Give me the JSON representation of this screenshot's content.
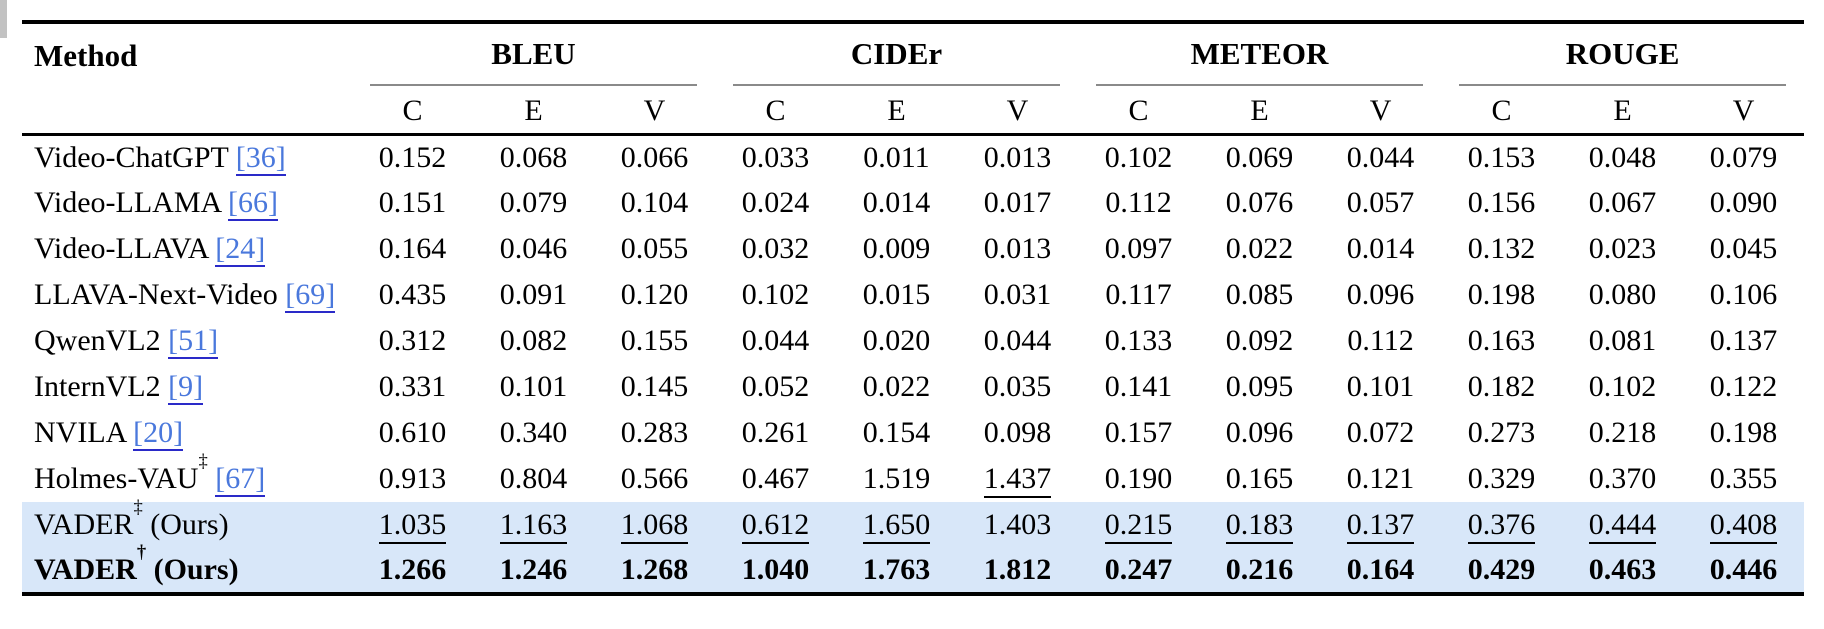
{
  "table": {
    "method_header": "Method",
    "groups": [
      {
        "label": "BLEU"
      },
      {
        "label": "CIDEr"
      },
      {
        "label": "METEOR"
      },
      {
        "label": "ROUGE"
      }
    ],
    "subcolumns": [
      "C",
      "E",
      "V"
    ],
    "rows": [
      {
        "method": "Video-ChatGPT",
        "sup": "",
        "suffix": "",
        "ref": "36",
        "bold": false,
        "highlight": false,
        "values": [
          "0.152",
          "0.068",
          "0.066",
          "0.033",
          "0.011",
          "0.013",
          "0.102",
          "0.069",
          "0.044",
          "0.153",
          "0.048",
          "0.079"
        ],
        "underline": [
          false,
          false,
          false,
          false,
          false,
          false,
          false,
          false,
          false,
          false,
          false,
          false
        ]
      },
      {
        "method": "Video-LLAMA",
        "sup": "",
        "suffix": "",
        "ref": "66",
        "bold": false,
        "highlight": false,
        "values": [
          "0.151",
          "0.079",
          "0.104",
          "0.024",
          "0.014",
          "0.017",
          "0.112",
          "0.076",
          "0.057",
          "0.156",
          "0.067",
          "0.090"
        ],
        "underline": [
          false,
          false,
          false,
          false,
          false,
          false,
          false,
          false,
          false,
          false,
          false,
          false
        ]
      },
      {
        "method": "Video-LLAVA",
        "sup": "",
        "suffix": "",
        "ref": "24",
        "bold": false,
        "highlight": false,
        "values": [
          "0.164",
          "0.046",
          "0.055",
          "0.032",
          "0.009",
          "0.013",
          "0.097",
          "0.022",
          "0.014",
          "0.132",
          "0.023",
          "0.045"
        ],
        "underline": [
          false,
          false,
          false,
          false,
          false,
          false,
          false,
          false,
          false,
          false,
          false,
          false
        ]
      },
      {
        "method": "LLAVA-Next-Video",
        "sup": "",
        "suffix": "",
        "ref": "69",
        "bold": false,
        "highlight": false,
        "values": [
          "0.435",
          "0.091",
          "0.120",
          "0.102",
          "0.015",
          "0.031",
          "0.117",
          "0.085",
          "0.096",
          "0.198",
          "0.080",
          "0.106"
        ],
        "underline": [
          false,
          false,
          false,
          false,
          false,
          false,
          false,
          false,
          false,
          false,
          false,
          false
        ]
      },
      {
        "method": "QwenVL2",
        "sup": "",
        "suffix": "",
        "ref": "51",
        "bold": false,
        "highlight": false,
        "values": [
          "0.312",
          "0.082",
          "0.155",
          "0.044",
          "0.020",
          "0.044",
          "0.133",
          "0.092",
          "0.112",
          "0.163",
          "0.081",
          "0.137"
        ],
        "underline": [
          false,
          false,
          false,
          false,
          false,
          false,
          false,
          false,
          false,
          false,
          false,
          false
        ]
      },
      {
        "method": "InternVL2",
        "sup": "",
        "suffix": "",
        "ref": "9",
        "bold": false,
        "highlight": false,
        "values": [
          "0.331",
          "0.101",
          "0.145",
          "0.052",
          "0.022",
          "0.035",
          "0.141",
          "0.095",
          "0.101",
          "0.182",
          "0.102",
          "0.122"
        ],
        "underline": [
          false,
          false,
          false,
          false,
          false,
          false,
          false,
          false,
          false,
          false,
          false,
          false
        ]
      },
      {
        "method": "NVILA",
        "sup": "",
        "suffix": "",
        "ref": "20",
        "bold": false,
        "highlight": false,
        "values": [
          "0.610",
          "0.340",
          "0.283",
          "0.261",
          "0.154",
          "0.098",
          "0.157",
          "0.096",
          "0.072",
          "0.273",
          "0.218",
          "0.198"
        ],
        "underline": [
          false,
          false,
          false,
          false,
          false,
          false,
          false,
          false,
          false,
          false,
          false,
          false
        ]
      },
      {
        "method": "Holmes-VAU",
        "sup": "‡",
        "suffix": "",
        "ref": "67",
        "bold": false,
        "highlight": false,
        "values": [
          "0.913",
          "0.804",
          "0.566",
          "0.467",
          "1.519",
          "1.437",
          "0.190",
          "0.165",
          "0.121",
          "0.329",
          "0.370",
          "0.355"
        ],
        "underline": [
          false,
          false,
          false,
          false,
          false,
          true,
          false,
          false,
          false,
          false,
          false,
          false
        ]
      },
      {
        "method": "VADER",
        "sup": "‡",
        "suffix": " (Ours)",
        "ref": "",
        "bold": false,
        "highlight": true,
        "values": [
          "1.035",
          "1.163",
          "1.068",
          "0.612",
          "1.650",
          "1.403",
          "0.215",
          "0.183",
          "0.137",
          "0.376",
          "0.444",
          "0.408"
        ],
        "underline": [
          true,
          true,
          true,
          true,
          true,
          false,
          true,
          true,
          true,
          true,
          true,
          true
        ]
      },
      {
        "method": "VADER",
        "sup": "†",
        "suffix": " (Ours)",
        "ref": "",
        "bold": true,
        "highlight": true,
        "values": [
          "1.266",
          "1.246",
          "1.268",
          "1.040",
          "1.763",
          "1.812",
          "0.247",
          "0.216",
          "0.164",
          "0.429",
          "0.463",
          "0.446"
        ],
        "underline": [
          false,
          false,
          false,
          false,
          false,
          false,
          false,
          false,
          false,
          false,
          false,
          false
        ]
      }
    ]
  },
  "colors": {
    "highlight_row": "#d8e7f9",
    "citation_link": "#4a78dc",
    "citation_underline": "#2a2ac8",
    "group_rule_gray": "#8a8a8a"
  }
}
